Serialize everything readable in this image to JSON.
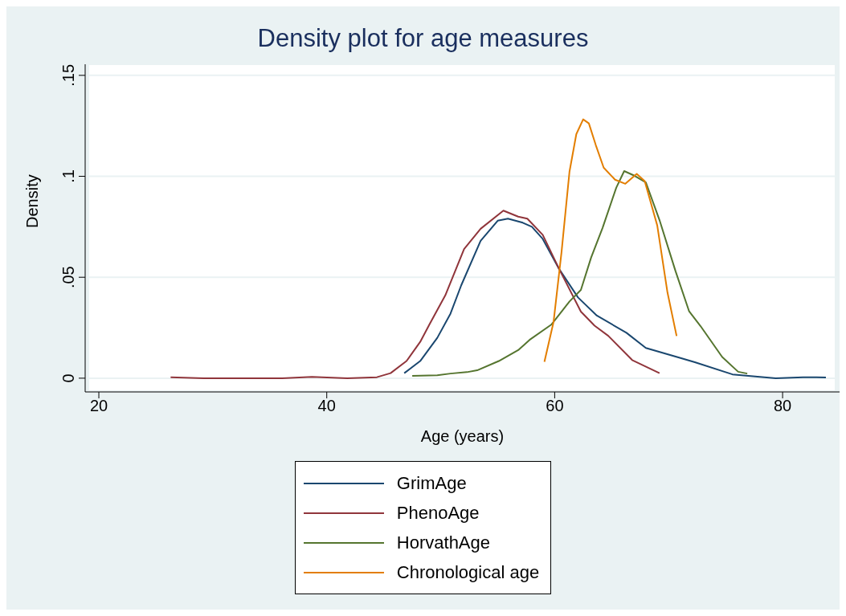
{
  "chart_data": {
    "type": "line",
    "title": "Density plot for age measures",
    "xlabel": "Age (years)",
    "ylabel": "Density",
    "xlim": [
      18.8,
      85
    ],
    "xticks": [
      20,
      40,
      60,
      80
    ],
    "ylim": [
      -0.0068,
      0.1555
    ],
    "yticks": [
      {
        "value": 0,
        "label": "0"
      },
      {
        "value": 0.05,
        "label": ".05"
      },
      {
        "value": 0.1,
        "label": ".1"
      },
      {
        "value": 0.15,
        "label": ".15"
      }
    ],
    "grid": "y",
    "legend": "bottom",
    "line_style": "solid",
    "marker": "none",
    "series": [
      {
        "name": "GrimAge",
        "color": "#1a476f",
        "x": [
          46.8,
          48.2,
          49.7,
          50.86,
          51.8,
          53.5,
          55.0,
          55.9,
          57.2,
          58.0,
          58.95,
          60.4,
          62.05,
          63.7,
          66.3,
          68.0,
          71.1,
          72.3,
          75.6,
          79.4,
          81.8,
          83.8
        ],
        "values": [
          0.0025,
          0.0085,
          0.02,
          0.032,
          0.046,
          0.068,
          0.078,
          0.079,
          0.077,
          0.075,
          0.069,
          0.054,
          0.04,
          0.031,
          0.0225,
          0.015,
          0.0099,
          0.0079,
          0.0019,
          0.0,
          0.0005,
          0.0004
        ]
      },
      {
        "name": "PhenoAge",
        "color": "#90353b",
        "x": [
          26.3,
          29.2,
          36.1,
          38.7,
          41.8,
          44.4,
          45.6,
          47.0,
          48.2,
          49.0,
          50.4,
          52.05,
          53.5,
          55.5,
          56.8,
          57.6,
          58.95,
          60.4,
          62.3,
          63.5,
          64.7,
          66.8,
          69.2
        ],
        "values": [
          0.0005,
          0.0,
          0.0,
          0.0007,
          0.0,
          0.0005,
          0.0025,
          0.0085,
          0.018,
          0.0265,
          0.041,
          0.064,
          0.074,
          0.083,
          0.08,
          0.079,
          0.071,
          0.054,
          0.033,
          0.026,
          0.021,
          0.009,
          0.0025
        ]
      },
      {
        "name": "HorvathAge",
        "color": "#55752f",
        "x": [
          47.5,
          49.7,
          50.86,
          52.3,
          53.2,
          55.1,
          56.8,
          57.8,
          59.7,
          61.3,
          62.3,
          63.2,
          64.2,
          65.4,
          66.1,
          67.0,
          68.0,
          69.2,
          70.6,
          71.8,
          72.8,
          74.7,
          76.1,
          76.9
        ],
        "values": [
          0.0012,
          0.0015,
          0.0023,
          0.003,
          0.0039,
          0.0085,
          0.0139,
          0.019,
          0.0265,
          0.038,
          0.0437,
          0.0598,
          0.0744,
          0.0943,
          0.1026,
          0.1003,
          0.097,
          0.0783,
          0.0531,
          0.0331,
          0.0258,
          0.0105,
          0.0032,
          0.0023
        ]
      },
      {
        "name": "Chronological age",
        "color": "#e37e00",
        "x": [
          59.1,
          59.9,
          60.6,
          61.3,
          61.9,
          62.5,
          63.0,
          63.6,
          64.3,
          65.3,
          66.2,
          67.2,
          67.9,
          69.0,
          69.9,
          70.7
        ],
        "values": [
          0.0081,
          0.0278,
          0.0624,
          0.1023,
          0.1209,
          0.1282,
          0.1262,
          0.1156,
          0.1043,
          0.0983,
          0.0963,
          0.1012,
          0.0976,
          0.0757,
          0.0424,
          0.0209
        ]
      }
    ]
  }
}
